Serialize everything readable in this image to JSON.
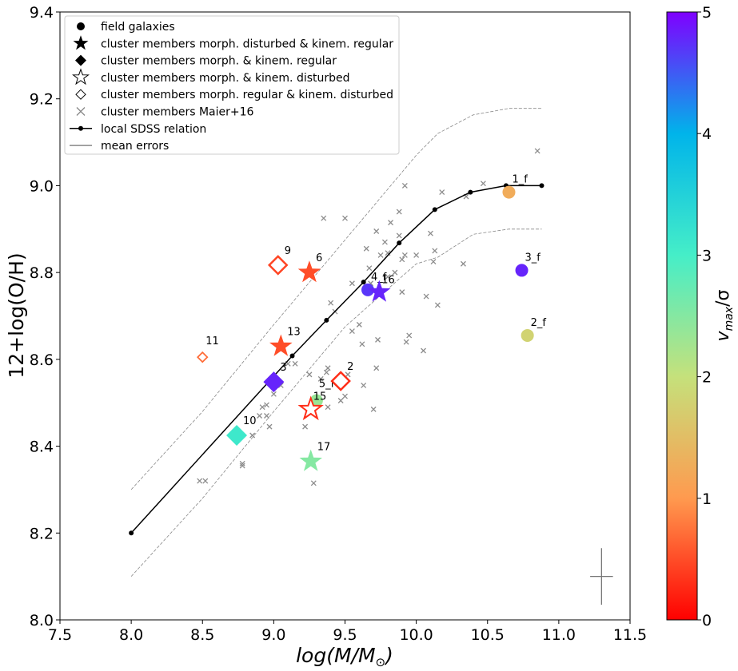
{
  "chart_data": {
    "type": "scatter",
    "xlabel": "log(M/M",
    "xlabel_sub": "⊙",
    "xlabel_end": ")",
    "ylabel": "12+log(O/H)",
    "xlim": [
      7.5,
      11.5
    ],
    "ylim": [
      8.0,
      9.4
    ],
    "xticks": [
      "7.5",
      "8.0",
      "8.5",
      "9.0",
      "9.5",
      "10.0",
      "10.5",
      "11.0",
      "11.5"
    ],
    "yticks": [
      "8.0",
      "8.2",
      "8.4",
      "8.6",
      "8.8",
      "9.0",
      "9.2",
      "9.4"
    ],
    "colorbar": {
      "label": "v",
      "label_sub": "max",
      "label_end": "/σ",
      "range": [
        0,
        5
      ],
      "ticks": [
        "0",
        "1",
        "2",
        "3",
        "4",
        "5"
      ]
    },
    "legend": [
      {
        "marker": "filled-circle",
        "label": "field galaxies"
      },
      {
        "marker": "filled-star",
        "label": "cluster members morph. disturbed & kinem. regular"
      },
      {
        "marker": "filled-diamond",
        "label": "cluster members morph. & kinem. regular"
      },
      {
        "marker": "open-star",
        "label": "cluster members morph. & kinem. disturbed"
      },
      {
        "marker": "open-diamond",
        "label": "cluster members morph. regular & kinem. disturbed"
      },
      {
        "marker": "cross",
        "label": "cluster members Maier+16"
      },
      {
        "marker": "line-dot",
        "label": "local SDSS relation"
      },
      {
        "marker": "line",
        "label": "mean errors"
      }
    ],
    "sdss_relation": {
      "x": [
        8.0,
        9.13,
        9.37,
        9.63,
        9.88,
        10.13,
        10.38,
        10.63,
        10.88
      ],
      "y": [
        8.2,
        8.608,
        8.69,
        8.778,
        8.868,
        8.945,
        8.985,
        9.0,
        9.0
      ]
    },
    "sdss_upper": {
      "x": [
        8.0,
        8.5,
        9.0,
        9.5,
        10.0,
        10.15,
        10.4,
        10.65,
        10.88
      ],
      "y": [
        8.3,
        8.48,
        8.68,
        8.875,
        9.07,
        9.12,
        9.163,
        9.178,
        9.178
      ]
    },
    "sdss_lower": {
      "x": [
        8.0,
        8.5,
        9.0,
        9.5,
        10.0,
        10.15,
        10.4,
        10.65,
        10.88
      ],
      "y": [
        8.1,
        8.28,
        8.48,
        8.675,
        8.82,
        8.835,
        8.888,
        8.9,
        8.9
      ]
    },
    "maier16": {
      "x": [
        8.48,
        8.52,
        8.78,
        8.78,
        8.85,
        8.9,
        8.92,
        8.95,
        8.95,
        8.97,
        9.0,
        9.05,
        9.1,
        9.15,
        9.22,
        9.25,
        9.28,
        9.3,
        9.33,
        9.35,
        9.37,
        9.38,
        9.38,
        9.4,
        9.43,
        9.47,
        9.5,
        9.5,
        9.52,
        9.55,
        9.55,
        9.6,
        9.62,
        9.63,
        9.65,
        9.67,
        9.68,
        9.7,
        9.72,
        9.72,
        9.73,
        9.75,
        9.78,
        9.8,
        9.8,
        9.82,
        9.85,
        9.88,
        9.88,
        9.9,
        9.9,
        9.92,
        9.92,
        9.93,
        9.95,
        10.0,
        10.05,
        10.07,
        10.1,
        10.12,
        10.13,
        10.15,
        10.18,
        10.33,
        10.35,
        10.47,
        10.85
      ],
      "y": [
        8.32,
        8.32,
        8.36,
        8.355,
        8.425,
        8.47,
        8.49,
        8.495,
        8.47,
        8.445,
        8.52,
        8.54,
        8.59,
        8.59,
        8.445,
        8.565,
        8.315,
        8.51,
        8.555,
        8.925,
        8.57,
        8.58,
        8.49,
        8.73,
        8.71,
        8.505,
        8.515,
        8.925,
        8.565,
        8.665,
        8.775,
        8.68,
        8.635,
        8.54,
        8.855,
        8.81,
        8.775,
        8.485,
        8.895,
        8.58,
        8.645,
        8.84,
        8.87,
        8.79,
        8.845,
        8.915,
        8.8,
        8.885,
        8.94,
        8.83,
        8.755,
        9.0,
        8.84,
        8.64,
        8.655,
        8.84,
        8.62,
        8.745,
        8.89,
        8.825,
        8.85,
        8.725,
        8.985,
        8.82,
        8.975,
        9.005,
        9.08
      ]
    },
    "mean_errors": {
      "x": 11.3,
      "y": 8.1,
      "xerr": 0.08,
      "yerr": 0.065
    },
    "galaxies": [
      {
        "name": "1_f",
        "type": "filled-circle",
        "x": 10.65,
        "y": 8.985,
        "v": 1.25
      },
      {
        "name": "2_f",
        "type": "filled-circle",
        "x": 10.78,
        "y": 8.655,
        "v": 1.8
      },
      {
        "name": "3_f",
        "type": "filled-circle",
        "x": 10.74,
        "y": 8.805,
        "v": 4.8
      },
      {
        "name": "4_f",
        "type": "filled-circle",
        "x": 9.66,
        "y": 8.76,
        "v": 4.7
      },
      {
        "name": "5_f",
        "type": "filled-circle",
        "x": 9.3,
        "y": 8.505,
        "v": 2.35
      },
      {
        "name": "16",
        "type": "filled-star",
        "x": 9.74,
        "y": 8.755,
        "v": 4.8
      },
      {
        "name": "6",
        "type": "filled-star",
        "x": 9.25,
        "y": 8.8,
        "v": 0.5
      },
      {
        "name": "13",
        "type": "filled-star",
        "x": 9.05,
        "y": 8.63,
        "v": 0.5
      },
      {
        "name": "17",
        "type": "filled-star",
        "x": 9.26,
        "y": 8.365,
        "v": 2.5
      },
      {
        "name": "3",
        "type": "filled-diamond",
        "x": 9.0,
        "y": 8.548,
        "v": 4.8
      },
      {
        "name": "10",
        "type": "filled-diamond",
        "x": 8.74,
        "y": 8.425,
        "v": 3.1
      },
      {
        "name": "15",
        "type": "open-star",
        "x": 9.26,
        "y": 8.485,
        "v": 0.3
      },
      {
        "name": "9",
        "type": "open-diamond",
        "x": 9.03,
        "y": 8.817,
        "v": 0.45
      },
      {
        "name": "2",
        "type": "open-diamond",
        "x": 9.47,
        "y": 8.55,
        "v": 0.3
      },
      {
        "name": "11",
        "type": "open-diamond",
        "x": 8.5,
        "y": 8.605,
        "v": 0.7
      }
    ]
  }
}
